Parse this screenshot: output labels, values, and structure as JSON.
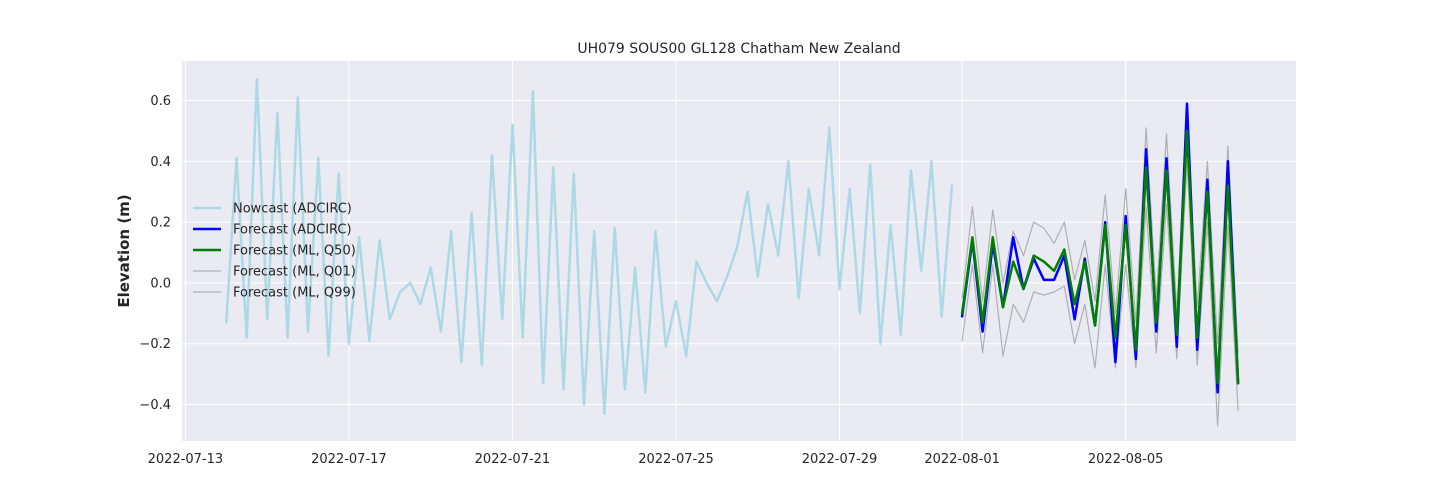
{
  "chart_data": {
    "type": "line",
    "title": "UH079 SOUS00 GL128 Chatham New Zealand",
    "xlabel": "",
    "ylabel": "Elevation (m)",
    "x_axis": "date",
    "xlim": [
      "2022-07-12T22:00",
      "2022-08-09T04:00"
    ],
    "ylim": [
      -0.52,
      0.73
    ],
    "x_ticks": [
      "2022-07-13",
      "2022-07-17",
      "2022-07-21",
      "2022-07-25",
      "2022-07-29",
      "2022-08-01",
      "2022-08-05"
    ],
    "y_ticks": [
      -0.4,
      -0.2,
      0.0,
      0.2,
      0.4,
      0.6
    ],
    "y_tick_labels": [
      "−0.4",
      "−0.2",
      "0.0",
      "0.2",
      "0.4",
      "0.6"
    ],
    "grid": true,
    "legend_position": "center-left",
    "background": "#EAEAF2",
    "series": [
      {
        "name": "Nowcast (ADCIRC)",
        "color": "#ADD8E6",
        "width": 2.5,
        "points": [
          [
            "2022-07-14T00:00",
            -0.13
          ],
          [
            "2022-07-14T06:00",
            0.41
          ],
          [
            "2022-07-14T12:00",
            -0.18
          ],
          [
            "2022-07-14T18:00",
            0.67
          ],
          [
            "2022-07-15T00:00",
            -0.12
          ],
          [
            "2022-07-15T06:00",
            0.56
          ],
          [
            "2022-07-15T12:00",
            -0.18
          ],
          [
            "2022-07-15T18:00",
            0.61
          ],
          [
            "2022-07-16T00:00",
            -0.16
          ],
          [
            "2022-07-16T06:00",
            0.41
          ],
          [
            "2022-07-16T12:00",
            -0.24
          ],
          [
            "2022-07-16T18:00",
            0.36
          ],
          [
            "2022-07-17T00:00",
            -0.2
          ],
          [
            "2022-07-17T06:00",
            0.15
          ],
          [
            "2022-07-17T12:00",
            -0.19
          ],
          [
            "2022-07-17T18:00",
            0.14
          ],
          [
            "2022-07-18T00:00",
            -0.12
          ],
          [
            "2022-07-18T06:00",
            -0.03
          ],
          [
            "2022-07-18T12:00",
            0.0
          ],
          [
            "2022-07-18T18:00",
            -0.07
          ],
          [
            "2022-07-19T00:00",
            0.05
          ],
          [
            "2022-07-19T06:00",
            -0.16
          ],
          [
            "2022-07-19T12:00",
            0.17
          ],
          [
            "2022-07-19T18:00",
            -0.26
          ],
          [
            "2022-07-20T00:00",
            0.23
          ],
          [
            "2022-07-20T06:00",
            -0.27
          ],
          [
            "2022-07-20T12:00",
            0.42
          ],
          [
            "2022-07-20T18:00",
            -0.12
          ],
          [
            "2022-07-21T00:00",
            0.52
          ],
          [
            "2022-07-21T06:00",
            -0.18
          ],
          [
            "2022-07-21T12:00",
            0.63
          ],
          [
            "2022-07-21T18:00",
            -0.33
          ],
          [
            "2022-07-22T00:00",
            0.38
          ],
          [
            "2022-07-22T06:00",
            -0.35
          ],
          [
            "2022-07-22T12:00",
            0.36
          ],
          [
            "2022-07-22T18:00",
            -0.4
          ],
          [
            "2022-07-23T00:00",
            0.17
          ],
          [
            "2022-07-23T06:00",
            -0.43
          ],
          [
            "2022-07-23T12:00",
            0.18
          ],
          [
            "2022-07-23T18:00",
            -0.35
          ],
          [
            "2022-07-24T00:00",
            0.05
          ],
          [
            "2022-07-24T06:00",
            -0.36
          ],
          [
            "2022-07-24T12:00",
            0.17
          ],
          [
            "2022-07-24T18:00",
            -0.21
          ],
          [
            "2022-07-25T00:00",
            -0.06
          ],
          [
            "2022-07-25T06:00",
            -0.24
          ],
          [
            "2022-07-25T12:00",
            0.07
          ],
          [
            "2022-07-25T18:00",
            0.0
          ],
          [
            "2022-07-26T00:00",
            -0.06
          ],
          [
            "2022-07-26T06:00",
            0.02
          ],
          [
            "2022-07-26T12:00",
            0.12
          ],
          [
            "2022-07-26T18:00",
            0.3
          ],
          [
            "2022-07-27T00:00",
            0.02
          ],
          [
            "2022-07-27T06:00",
            0.26
          ],
          [
            "2022-07-27T12:00",
            0.09
          ],
          [
            "2022-07-27T18:00",
            0.4
          ],
          [
            "2022-07-28T00:00",
            -0.05
          ],
          [
            "2022-07-28T06:00",
            0.31
          ],
          [
            "2022-07-28T12:00",
            0.09
          ],
          [
            "2022-07-28T18:00",
            0.51
          ],
          [
            "2022-07-29T00:00",
            -0.02
          ],
          [
            "2022-07-29T06:00",
            0.31
          ],
          [
            "2022-07-29T12:00",
            -0.1
          ],
          [
            "2022-07-29T18:00",
            0.39
          ],
          [
            "2022-07-30T00:00",
            -0.2
          ],
          [
            "2022-07-30T06:00",
            0.19
          ],
          [
            "2022-07-30T12:00",
            -0.17
          ],
          [
            "2022-07-30T18:00",
            0.37
          ],
          [
            "2022-07-31T00:00",
            0.04
          ],
          [
            "2022-07-31T06:00",
            0.4
          ],
          [
            "2022-07-31T12:00",
            -0.11
          ],
          [
            "2022-07-31T18:00",
            0.32
          ]
        ]
      },
      {
        "name": "Forecast (ADCIRC)",
        "color": "#0000FF",
        "width": 2.5,
        "points": [
          [
            "2022-08-01T00:00",
            -0.11
          ],
          [
            "2022-08-01T06:00",
            0.14
          ],
          [
            "2022-08-01T12:00",
            -0.16
          ],
          [
            "2022-08-01T18:00",
            0.13
          ],
          [
            "2022-08-02T00:00",
            -0.08
          ],
          [
            "2022-08-02T06:00",
            0.15
          ],
          [
            "2022-08-02T12:00",
            -0.02
          ],
          [
            "2022-08-02T18:00",
            0.08
          ],
          [
            "2022-08-03T00:00",
            0.01
          ],
          [
            "2022-08-03T06:00",
            0.01
          ],
          [
            "2022-08-03T12:00",
            0.09
          ],
          [
            "2022-08-03T18:00",
            -0.12
          ],
          [
            "2022-08-04T00:00",
            0.08
          ],
          [
            "2022-08-04T06:00",
            -0.14
          ],
          [
            "2022-08-04T12:00",
            0.2
          ],
          [
            "2022-08-04T18:00",
            -0.26
          ],
          [
            "2022-08-05T00:00",
            0.22
          ],
          [
            "2022-08-05T06:00",
            -0.25
          ],
          [
            "2022-08-05T12:00",
            0.44
          ],
          [
            "2022-08-05T18:00",
            -0.16
          ],
          [
            "2022-08-06T00:00",
            0.41
          ],
          [
            "2022-08-06T06:00",
            -0.21
          ],
          [
            "2022-08-06T12:00",
            0.59
          ],
          [
            "2022-08-06T18:00",
            -0.22
          ],
          [
            "2022-08-07T00:00",
            0.34
          ],
          [
            "2022-08-07T06:00",
            -0.36
          ],
          [
            "2022-08-07T12:00",
            0.4
          ],
          [
            "2022-08-07T18:00",
            -0.33
          ]
        ]
      },
      {
        "name": "Forecast (ML, Q50)",
        "color": "#008000",
        "width": 2.5,
        "points": [
          [
            "2022-08-01T00:00",
            -0.1
          ],
          [
            "2022-08-01T06:00",
            0.15
          ],
          [
            "2022-08-01T12:00",
            -0.13
          ],
          [
            "2022-08-01T18:00",
            0.15
          ],
          [
            "2022-08-02T00:00",
            -0.08
          ],
          [
            "2022-08-02T06:00",
            0.07
          ],
          [
            "2022-08-02T12:00",
            -0.02
          ],
          [
            "2022-08-02T18:00",
            0.09
          ],
          [
            "2022-08-03T00:00",
            0.07
          ],
          [
            "2022-08-03T06:00",
            0.04
          ],
          [
            "2022-08-03T12:00",
            0.11
          ],
          [
            "2022-08-03T18:00",
            -0.07
          ],
          [
            "2022-08-04T00:00",
            0.07
          ],
          [
            "2022-08-04T06:00",
            -0.14
          ],
          [
            "2022-08-04T12:00",
            0.19
          ],
          [
            "2022-08-04T18:00",
            -0.18
          ],
          [
            "2022-08-05T00:00",
            0.19
          ],
          [
            "2022-08-05T06:00",
            -0.22
          ],
          [
            "2022-08-05T12:00",
            0.38
          ],
          [
            "2022-08-05T18:00",
            -0.13
          ],
          [
            "2022-08-06T00:00",
            0.37
          ],
          [
            "2022-08-06T06:00",
            -0.17
          ],
          [
            "2022-08-06T12:00",
            0.5
          ],
          [
            "2022-08-06T18:00",
            -0.18
          ],
          [
            "2022-08-07T00:00",
            0.3
          ],
          [
            "2022-08-07T06:00",
            -0.33
          ],
          [
            "2022-08-07T12:00",
            0.32
          ],
          [
            "2022-08-07T18:00",
            -0.33
          ]
        ]
      },
      {
        "name": "Forecast (ML, Q01)",
        "color": "#B0B0B0",
        "width": 1.2,
        "points": [
          [
            "2022-08-01T00:00",
            -0.19
          ],
          [
            "2022-08-01T06:00",
            0.06
          ],
          [
            "2022-08-01T12:00",
            -0.23
          ],
          [
            "2022-08-01T18:00",
            0.06
          ],
          [
            "2022-08-02T00:00",
            -0.24
          ],
          [
            "2022-08-02T06:00",
            -0.07
          ],
          [
            "2022-08-02T12:00",
            -0.13
          ],
          [
            "2022-08-02T18:00",
            -0.03
          ],
          [
            "2022-08-03T00:00",
            -0.04
          ],
          [
            "2022-08-03T06:00",
            -0.03
          ],
          [
            "2022-08-03T12:00",
            -0.01
          ],
          [
            "2022-08-03T18:00",
            -0.2
          ],
          [
            "2022-08-04T00:00",
            -0.07
          ],
          [
            "2022-08-04T06:00",
            -0.28
          ],
          [
            "2022-08-04T12:00",
            0.06
          ],
          [
            "2022-08-04T18:00",
            -0.28
          ],
          [
            "2022-08-05T00:00",
            0.06
          ],
          [
            "2022-08-05T06:00",
            -0.28
          ],
          [
            "2022-08-05T12:00",
            0.25
          ],
          [
            "2022-08-05T18:00",
            -0.23
          ],
          [
            "2022-08-06T00:00",
            0.26
          ],
          [
            "2022-08-06T06:00",
            -0.25
          ],
          [
            "2022-08-06T12:00",
            0.4
          ],
          [
            "2022-08-06T18:00",
            -0.27
          ],
          [
            "2022-08-07T00:00",
            0.2
          ],
          [
            "2022-08-07T06:00",
            -0.47
          ],
          [
            "2022-08-07T12:00",
            0.19
          ],
          [
            "2022-08-07T18:00",
            -0.42
          ]
        ]
      },
      {
        "name": "Forecast (ML, Q99)",
        "color": "#B0B0B0",
        "width": 1.2,
        "points": [
          [
            "2022-08-01T00:00",
            -0.05
          ],
          [
            "2022-08-01T06:00",
            0.25
          ],
          [
            "2022-08-01T12:00",
            -0.06
          ],
          [
            "2022-08-01T18:00",
            0.24
          ],
          [
            "2022-08-02T00:00",
            0.0
          ],
          [
            "2022-08-02T06:00",
            0.17
          ],
          [
            "2022-08-02T12:00",
            0.09
          ],
          [
            "2022-08-02T18:00",
            0.2
          ],
          [
            "2022-08-03T00:00",
            0.18
          ],
          [
            "2022-08-03T06:00",
            0.13
          ],
          [
            "2022-08-03T12:00",
            0.2
          ],
          [
            "2022-08-03T18:00",
            0.01
          ],
          [
            "2022-08-04T00:00",
            0.14
          ],
          [
            "2022-08-04T06:00",
            -0.06
          ],
          [
            "2022-08-04T12:00",
            0.29
          ],
          [
            "2022-08-04T18:00",
            -0.1
          ],
          [
            "2022-08-05T00:00",
            0.31
          ],
          [
            "2022-08-05T06:00",
            -0.13
          ],
          [
            "2022-08-05T12:00",
            0.51
          ],
          [
            "2022-08-05T18:00",
            -0.05
          ],
          [
            "2022-08-06T00:00",
            0.49
          ],
          [
            "2022-08-06T06:00",
            -0.09
          ],
          [
            "2022-08-06T12:00",
            0.56
          ],
          [
            "2022-08-06T18:00",
            -0.08
          ],
          [
            "2022-08-07T00:00",
            0.4
          ],
          [
            "2022-08-07T06:00",
            -0.2
          ],
          [
            "2022-08-07T12:00",
            0.45
          ],
          [
            "2022-08-07T18:00",
            -0.23
          ]
        ]
      }
    ]
  }
}
